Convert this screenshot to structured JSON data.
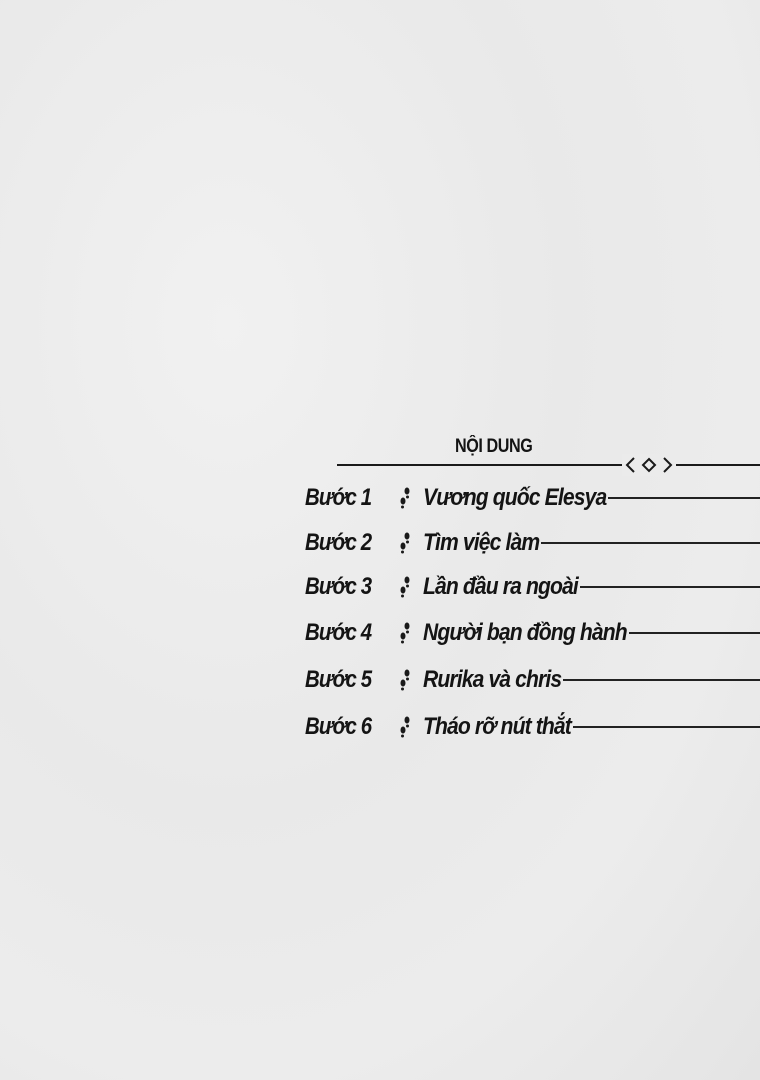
{
  "toc": {
    "title": "NỘI DUNG",
    "ornament_icon": "diamond-chevrons-icon",
    "bullet_icon": "footprints-icon",
    "items": [
      {
        "step": "Bước 1",
        "title": "Vương quốc Elesya"
      },
      {
        "step": "Bước 2",
        "title": "Tìm việc làm"
      },
      {
        "step": "Bước 3",
        "title": "Lần đầu ra ngoài"
      },
      {
        "step": "Bước 4",
        "title": "Người bạn đồng hành"
      },
      {
        "step": "Bước 5",
        "title": "Rurika và chris"
      },
      {
        "step": "Bước 6",
        "title": "Tháo rỡ nút thắt"
      }
    ]
  }
}
